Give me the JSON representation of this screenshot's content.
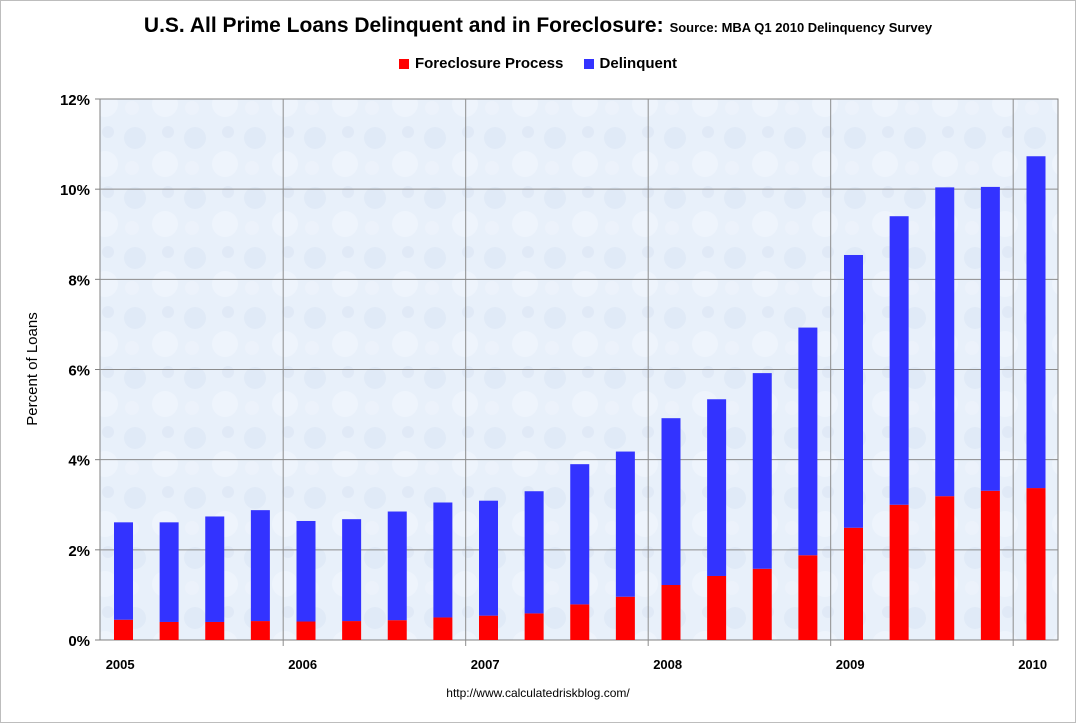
{
  "title": "U.S. All Prime Loans Delinquent and in Foreclosure:",
  "subtitle": "Source: MBA Q1 2010 Delinquency Survey",
  "footer": "http://www.calculatedriskblog.com/",
  "chart_data": {
    "type": "bar",
    "stacked": true,
    "ylabel": "Percent of Loans",
    "xlabel": "",
    "ylim": [
      0,
      12
    ],
    "yticks": [
      "0%",
      "2%",
      "4%",
      "6%",
      "8%",
      "10%",
      "12%"
    ],
    "year_labels": [
      "2005",
      "2006",
      "2007",
      "2008",
      "2009",
      "2010"
    ],
    "categories": [
      "2005 Q1",
      "2005 Q2",
      "2005 Q3",
      "2005 Q4",
      "2006 Q1",
      "2006 Q2",
      "2006 Q3",
      "2006 Q4",
      "2007 Q1",
      "2007 Q2",
      "2007 Q3",
      "2007 Q4",
      "2008 Q1",
      "2008 Q2",
      "2008 Q3",
      "2008 Q4",
      "2009 Q1",
      "2009 Q2",
      "2009 Q3",
      "2009 Q4",
      "2010 Q1"
    ],
    "series": [
      {
        "name": "Foreclosure Process",
        "color": "#ff0000",
        "values": [
          0.45,
          0.4,
          0.4,
          0.42,
          0.41,
          0.42,
          0.44,
          0.5,
          0.54,
          0.59,
          0.79,
          0.96,
          1.22,
          1.42,
          1.58,
          1.88,
          2.49,
          3.0,
          3.19,
          3.31,
          3.37
        ]
      },
      {
        "name": "Delinquent",
        "color": "#3333ff",
        "values": [
          2.16,
          2.21,
          2.34,
          2.46,
          2.23,
          2.26,
          2.41,
          2.55,
          2.55,
          2.71,
          3.11,
          3.22,
          3.7,
          3.92,
          4.34,
          5.05,
          6.05,
          6.4,
          6.85,
          6.74,
          7.36
        ]
      }
    ]
  }
}
